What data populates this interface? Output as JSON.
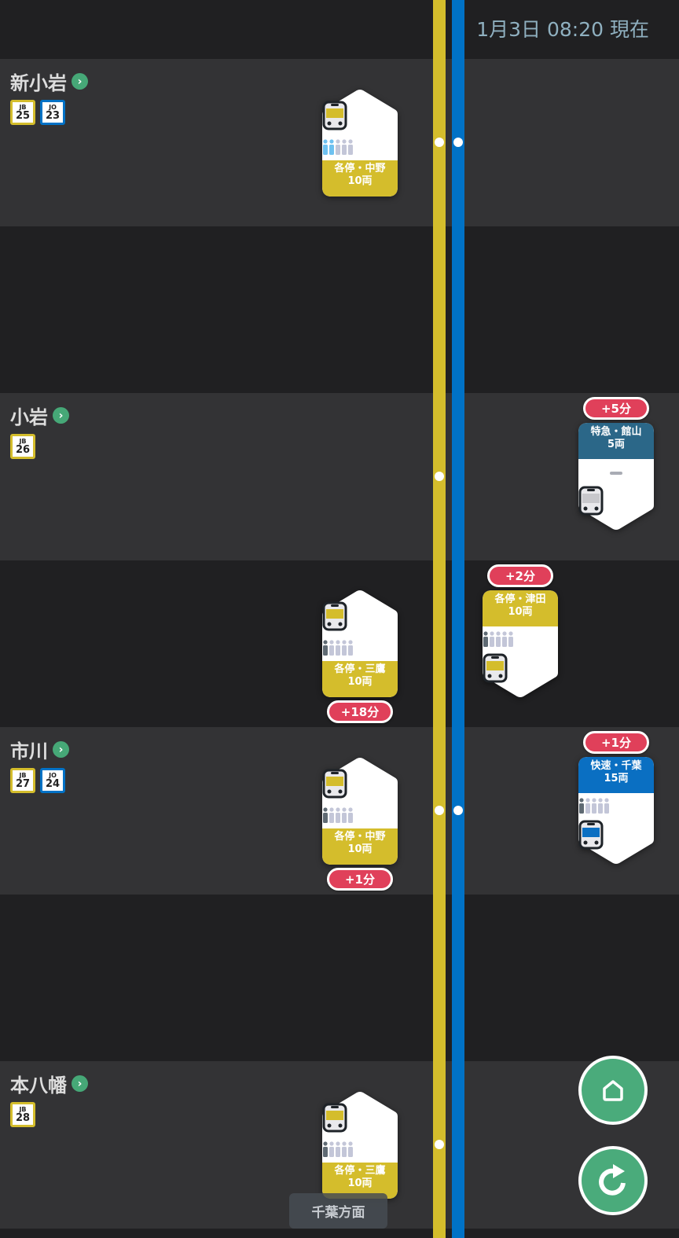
{
  "header": {
    "timestamp": "1月3日 08:20 現在"
  },
  "colors": {
    "chuo_sobu_yellow": "#d4bd2c",
    "sobu_rapid_blue": "#0072c6",
    "express_teal": "#2b6788",
    "delay_red": "#e0405a",
    "action_green": "#4aab7b",
    "crowd_light_blue": "#6ec1f0",
    "crowd_dark": "#5f6a73",
    "crowd_empty": "#c3c6d8"
  },
  "stations": [
    {
      "name": "新小岩",
      "codes": [
        {
          "line": "JB",
          "num": "25",
          "color": "#d4bd2c"
        },
        {
          "line": "JO",
          "num": "23",
          "color": "#0072c6"
        }
      ]
    },
    {
      "name": "小岩",
      "codes": [
        {
          "line": "JB",
          "num": "26",
          "color": "#d4bd2c"
        }
      ]
    },
    {
      "name": "市川",
      "codes": [
        {
          "line": "JB",
          "num": "27",
          "color": "#d4bd2c"
        },
        {
          "line": "JO",
          "num": "24",
          "color": "#0072c6"
        }
      ]
    },
    {
      "name": "本八幡",
      "codes": [
        {
          "line": "JB",
          "num": "28",
          "color": "#d4bd2c"
        }
      ]
    }
  ],
  "trains": [
    {
      "direction": "up",
      "service": "各停・中野",
      "cars": "10両",
      "color": "#d4bd2c",
      "crowd_level": 2,
      "crowd_color": "#6ec1f0",
      "delay": ""
    },
    {
      "direction": "down",
      "service": "特急・館山",
      "cars": "5両",
      "color": "#2b6788",
      "crowd_level": null,
      "train_icon": "gray",
      "delay": "+5分"
    },
    {
      "direction": "down",
      "service": "各停・津田",
      "cars": "10両",
      "color": "#d4bd2c",
      "crowd_level": 1,
      "crowd_color": "#5f6a73",
      "delay": "+2分"
    },
    {
      "direction": "up",
      "service": "各停・三鷹",
      "cars": "10両",
      "color": "#d4bd2c",
      "crowd_level": 1,
      "crowd_color": "#5f6a73",
      "delay": "+18分"
    },
    {
      "direction": "down",
      "service": "快速・千葉",
      "cars": "15両",
      "color": "#0a6fc2",
      "crowd_level": 1,
      "crowd_color": "#5f6a73",
      "delay": "+1分"
    },
    {
      "direction": "up",
      "service": "各停・中野",
      "cars": "10両",
      "color": "#d4bd2c",
      "crowd_level": 1,
      "crowd_color": "#5f6a73",
      "delay": "+1分"
    },
    {
      "direction": "up",
      "service": "各停・三鷹",
      "cars": "10両",
      "color": "#d4bd2c",
      "crowd_level": 1,
      "crowd_color": "#5f6a73",
      "delay": ""
    }
  ],
  "direction_label": "千葉方面",
  "buttons": {
    "home": "home-icon",
    "refresh": "refresh-icon"
  }
}
